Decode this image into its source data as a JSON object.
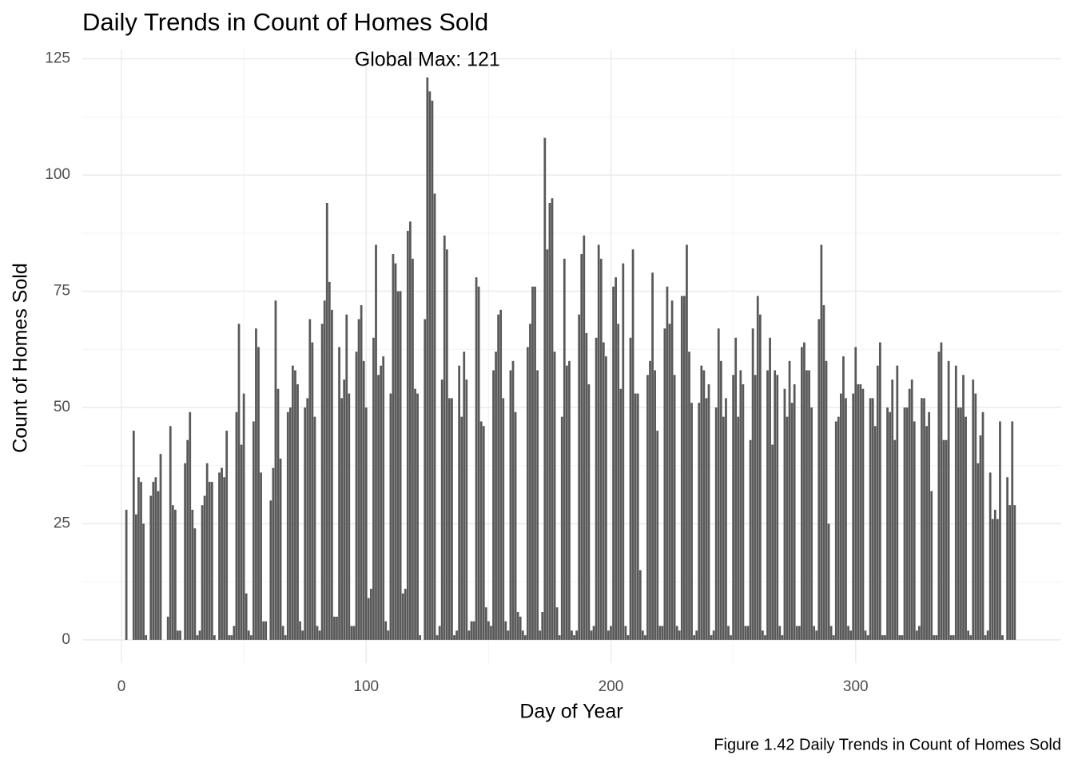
{
  "chart_data": {
    "type": "bar",
    "title": "Daily Trends in Count of Homes Sold",
    "x_label": "Day of Year",
    "y_label": "Count of Homes Sold",
    "caption": "Figure 1.42 Daily Trends in Count of Homes Sold",
    "annotation": "Global Max: 121",
    "color": "#595959",
    "grid": true,
    "xlim": [
      -16,
      384
    ],
    "xticks": [
      0,
      100,
      200,
      300
    ],
    "ylim": [
      -5,
      127
    ],
    "yticks": [
      0,
      25,
      50,
      75,
      100,
      125
    ],
    "x": [
      1,
      2,
      3,
      4,
      5,
      6,
      7,
      8,
      9,
      10,
      11,
      12,
      13,
      14,
      15,
      16,
      17,
      18,
      19,
      20,
      21,
      22,
      23,
      24,
      25,
      26,
      27,
      28,
      29,
      30,
      31,
      32,
      33,
      34,
      35,
      36,
      37,
      38,
      39,
      40,
      41,
      42,
      43,
      44,
      45,
      46,
      47,
      48,
      49,
      50,
      51,
      52,
      53,
      54,
      55,
      56,
      57,
      58,
      59,
      60,
      61,
      62,
      63,
      64,
      65,
      66,
      67,
      68,
      69,
      70,
      71,
      72,
      73,
      74,
      75,
      76,
      77,
      78,
      79,
      80,
      81,
      82,
      83,
      84,
      85,
      86,
      87,
      88,
      89,
      90,
      91,
      92,
      93,
      94,
      95,
      96,
      97,
      98,
      99,
      100,
      101,
      102,
      103,
      104,
      105,
      106,
      107,
      108,
      109,
      110,
      111,
      112,
      113,
      114,
      115,
      116,
      117,
      118,
      119,
      120,
      121,
      122,
      123,
      124,
      125,
      126,
      127,
      128,
      129,
      130,
      131,
      132,
      133,
      134,
      135,
      136,
      137,
      138,
      139,
      140,
      141,
      142,
      143,
      144,
      145,
      146,
      147,
      148,
      149,
      150,
      151,
      152,
      153,
      154,
      155,
      156,
      157,
      158,
      159,
      160,
      161,
      162,
      163,
      164,
      165,
      166,
      167,
      168,
      169,
      170,
      171,
      172,
      173,
      174,
      175,
      176,
      177,
      178,
      179,
      180,
      181,
      182,
      183,
      184,
      185,
      186,
      187,
      188,
      189,
      190,
      191,
      192,
      193,
      194,
      195,
      196,
      197,
      198,
      199,
      200,
      201,
      202,
      203,
      204,
      205,
      206,
      207,
      208,
      209,
      210,
      211,
      212,
      213,
      214,
      215,
      216,
      217,
      218,
      219,
      220,
      221,
      222,
      223,
      224,
      225,
      226,
      227,
      228,
      229,
      230,
      231,
      232,
      233,
      234,
      235,
      236,
      237,
      238,
      239,
      240,
      241,
      242,
      243,
      244,
      245,
      246,
      247,
      248,
      249,
      250,
      251,
      252,
      253,
      254,
      255,
      256,
      257,
      258,
      259,
      260,
      261,
      262,
      263,
      264,
      265,
      266,
      267,
      268,
      269,
      270,
      271,
      272,
      273,
      274,
      275,
      276,
      277,
      278,
      279,
      280,
      281,
      282,
      283,
      284,
      285,
      286,
      287,
      288,
      289,
      290,
      291,
      292,
      293,
      294,
      295,
      296,
      297,
      298,
      299,
      300,
      301,
      302,
      303,
      304,
      305,
      306,
      307,
      308,
      309,
      310,
      311,
      312,
      313,
      314,
      315,
      316,
      317,
      318,
      319,
      320,
      321,
      322,
      323,
      324,
      325,
      326,
      327,
      328,
      329,
      330,
      331,
      332,
      333,
      334,
      335,
      336,
      337,
      338,
      339,
      340,
      341,
      342,
      343,
      344,
      345,
      346,
      347,
      348,
      349,
      350,
      351,
      352,
      353,
      354,
      355,
      356,
      357,
      358,
      359,
      360,
      361,
      362,
      363,
      364,
      365
    ],
    "values": [
      0,
      28,
      0,
      0,
      45,
      27,
      35,
      34,
      25,
      1,
      0,
      31,
      34,
      35,
      32,
      40,
      0,
      0,
      5,
      46,
      29,
      28,
      2,
      2,
      0,
      38,
      43,
      49,
      28,
      24,
      1,
      2,
      29,
      31,
      38,
      34,
      34,
      1,
      0,
      36,
      37,
      35,
      45,
      1,
      1,
      3,
      49,
      68,
      42,
      53,
      10,
      2,
      1,
      47,
      67,
      63,
      36,
      4,
      4,
      0,
      30,
      37,
      73,
      54,
      39,
      3,
      1,
      49,
      50,
      59,
      58,
      55,
      4,
      2,
      50,
      52,
      69,
      64,
      48,
      3,
      2,
      68,
      73,
      94,
      77,
      71,
      5,
      5,
      63,
      52,
      56,
      70,
      53,
      3,
      3,
      62,
      69,
      72,
      60,
      50,
      9,
      11,
      65,
      85,
      57,
      59,
      61,
      4,
      2,
      53,
      83,
      81,
      75,
      75,
      10,
      11,
      88,
      90,
      82,
      54,
      53,
      1,
      0,
      69,
      121,
      118,
      116,
      96,
      1,
      3,
      56,
      87,
      84,
      52,
      52,
      1,
      2,
      59,
      48,
      62,
      56,
      2,
      4,
      4,
      78,
      76,
      47,
      46,
      7,
      4,
      3,
      58,
      62,
      70,
      71,
      52,
      4,
      2,
      58,
      60,
      49,
      6,
      5,
      2,
      1,
      63,
      68,
      76,
      76,
      58,
      2,
      6,
      108,
      84,
      94,
      95,
      62,
      7,
      1,
      48,
      82,
      59,
      60,
      2,
      1,
      2,
      70,
      83,
      87,
      66,
      55,
      2,
      3,
      65,
      85,
      82,
      64,
      61,
      2,
      3,
      76,
      78,
      68,
      54,
      81,
      3,
      1,
      65,
      84,
      53,
      53,
      15,
      2,
      1,
      57,
      60,
      79,
      58,
      45,
      3,
      3,
      67,
      76,
      68,
      73,
      57,
      3,
      2,
      74,
      74,
      85,
      62,
      51,
      1,
      2,
      51,
      59,
      58,
      52,
      55,
      1,
      2,
      50,
      67,
      60,
      48,
      52,
      3,
      1,
      57,
      65,
      48,
      58,
      55,
      3,
      3,
      43,
      67,
      57,
      74,
      70,
      2,
      1,
      58,
      65,
      42,
      58,
      57,
      3,
      1,
      54,
      48,
      60,
      51,
      55,
      3,
      3,
      63,
      64,
      58,
      58,
      50,
      3,
      2,
      69,
      85,
      72,
      60,
      25,
      3,
      1,
      47,
      48,
      53,
      61,
      52,
      3,
      2,
      53,
      63,
      55,
      55,
      54,
      2,
      1,
      52,
      52,
      46,
      59,
      64,
      1,
      1,
      50,
      49,
      56,
      43,
      59,
      1,
      1,
      50,
      50,
      54,
      56,
      47,
      2,
      3,
      52,
      52,
      46,
      49,
      32,
      1,
      1,
      62,
      64,
      43,
      43,
      60,
      1,
      1,
      59,
      50,
      50,
      57,
      48,
      2,
      1,
      56,
      53,
      38,
      44,
      49,
      1,
      2,
      36,
      26,
      28,
      26,
      47,
      1,
      0,
      35,
      29,
      47,
      29
    ]
  }
}
